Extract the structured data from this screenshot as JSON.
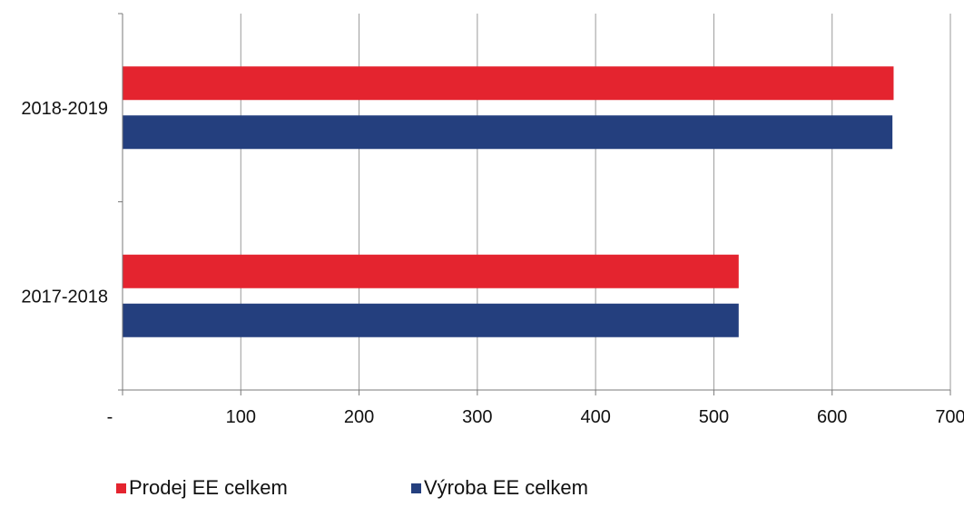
{
  "chart_data": {
    "type": "bar",
    "orientation": "horizontal",
    "categories": [
      "2018-2019",
      "2017-2018"
    ],
    "series": [
      {
        "name": "Prodej EE celkem",
        "values": [
          652,
          521
        ],
        "color": "#e4242f"
      },
      {
        "name": "Výroba EE celkem",
        "values": [
          651,
          521
        ],
        "color": "#243f7e"
      }
    ],
    "xlim": [
      0,
      700
    ],
    "x_ticks": [
      0,
      100,
      200,
      300,
      400,
      500,
      600,
      700
    ],
    "x_tick_labels": [
      "-",
      "100",
      "200",
      "300",
      "400",
      "500",
      "600",
      "700"
    ],
    "grid": "vertical",
    "legend": "bottom",
    "title": "",
    "xlabel": "",
    "ylabel": ""
  }
}
